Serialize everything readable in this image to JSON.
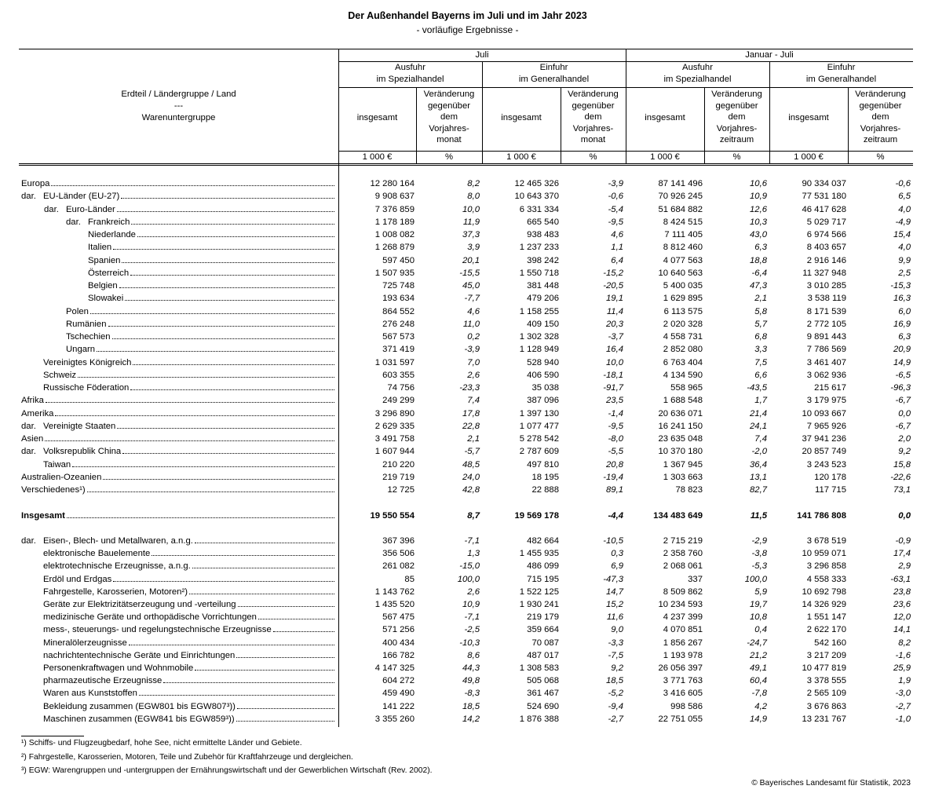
{
  "title": "Der Außenhandel Bayerns im Juli und im Jahr 2023",
  "subtitle": "- vorläufige Ergebnisse -",
  "header": {
    "label_col": [
      "Erdteil / Ländergruppe / Land",
      "---",
      "Warenuntergruppe"
    ],
    "periods": [
      "Juli",
      "Januar - Juli"
    ],
    "groups": [
      [
        "Ausfuhr",
        "im Spezialhandel"
      ],
      [
        "Einfuhr",
        "im Generalhandel"
      ],
      [
        "Ausfuhr",
        "im Spezialhandel"
      ],
      [
        "Einfuhr",
        "im Generalhandel"
      ]
    ],
    "sub": [
      [
        "insgesamt"
      ],
      [
        "Veränderung",
        "gegenüber",
        "dem",
        "Vorjahres-",
        "monat"
      ],
      [
        "insgesamt"
      ],
      [
        "Veränderung",
        "gegenüber",
        "dem",
        "Vorjahres-",
        "monat"
      ],
      [
        "insgesamt"
      ],
      [
        "Veränderung",
        "gegenüber",
        "dem",
        "Vorjahres-",
        "zeitraum"
      ],
      [
        "insgesamt"
      ],
      [
        "Veränderung",
        "gegenüber",
        "dem",
        "Vorjahres-",
        "zeitraum"
      ]
    ],
    "units": [
      "1 000 €",
      "%",
      "1 000 €",
      "%",
      "1 000 €",
      "%",
      "1 000 €",
      "%"
    ]
  },
  "regions": [
    {
      "level": 0,
      "label": "Europa",
      "values": [
        "12 280 164",
        "8,2",
        "12 465 326",
        "-3,9",
        "87 141 496",
        "10,6",
        "90 334 037",
        "-0,6"
      ]
    },
    {
      "level": 1,
      "prefix": "dar.",
      "label": "EU-Länder (EU-27)",
      "values": [
        "9 908 637",
        "8,0",
        "10 643 370",
        "-0,6",
        "70 926 245",
        "10,9",
        "77 531 180",
        "6,5"
      ]
    },
    {
      "level": 2,
      "prefix": "dar.",
      "label": "Euro-Länder",
      "values": [
        "7 376 859",
        "10,0",
        "6 331 334",
        "-5,4",
        "51 684 882",
        "12,6",
        "46 417 628",
        "4,0"
      ]
    },
    {
      "level": 3,
      "prefix": "dar.",
      "label": "Frankreich",
      "values": [
        "1 178 189",
        "11,9",
        "665 540",
        "-9,5",
        "8 424 515",
        "10,3",
        "5 029 717",
        "-4,9"
      ]
    },
    {
      "level": 3,
      "label": "Niederlande",
      "values": [
        "1 008 082",
        "37,3",
        "938 483",
        "4,6",
        "7 111 405",
        "43,0",
        "6 974 566",
        "15,4"
      ]
    },
    {
      "level": 3,
      "label": "Italien",
      "values": [
        "1 268 879",
        "3,9",
        "1 237 233",
        "1,1",
        "8 812 460",
        "6,3",
        "8 403 657",
        "4,0"
      ]
    },
    {
      "level": 3,
      "label": "Spanien",
      "values": [
        "597 450",
        "20,1",
        "398 242",
        "6,4",
        "4 077 563",
        "18,8",
        "2 916 146",
        "9,9"
      ]
    },
    {
      "level": 3,
      "label": "Österreich",
      "values": [
        "1 507 935",
        "-15,5",
        "1 550 718",
        "-15,2",
        "10 640 563",
        "-6,4",
        "11 327 948",
        "2,5"
      ]
    },
    {
      "level": 3,
      "label": "Belgien",
      "values": [
        "725 748",
        "45,0",
        "381 448",
        "-20,5",
        "5 400 035",
        "47,3",
        "3 010 285",
        "-15,3"
      ]
    },
    {
      "level": 3,
      "label": "Slowakei",
      "values": [
        "193 634",
        "-7,7",
        "479 206",
        "19,1",
        "1 629 895",
        "2,1",
        "3 538 119",
        "16,3"
      ]
    },
    {
      "level": 2,
      "label": "Polen",
      "values": [
        "864 552",
        "4,6",
        "1 158 255",
        "11,4",
        "6 113 575",
        "5,8",
        "8 171 539",
        "6,0"
      ]
    },
    {
      "level": 2,
      "label": "Rumänien",
      "values": [
        "276 248",
        "11,0",
        "409 150",
        "20,3",
        "2 020 328",
        "5,7",
        "2 772 105",
        "16,9"
      ]
    },
    {
      "level": 2,
      "label": "Tschechien",
      "values": [
        "567 573",
        "0,2",
        "1 302 328",
        "-3,7",
        "4 558 731",
        "6,8",
        "9 891 443",
        "6,3"
      ]
    },
    {
      "level": 2,
      "label": "Ungarn",
      "values": [
        "371 419",
        "-3,9",
        "1 128 949",
        "16,4",
        "2 852 080",
        "3,3",
        "7 786 569",
        "20,9"
      ]
    },
    {
      "level": 1,
      "label": "Vereinigtes Königreich",
      "values": [
        "1 031 597",
        "7,0",
        "528 940",
        "10,0",
        "6 763 404",
        "7,5",
        "3 461 407",
        "14,9"
      ]
    },
    {
      "level": 1,
      "label": "Schweiz",
      "values": [
        "603 355",
        "2,6",
        "406 590",
        "-18,1",
        "4 134 590",
        "6,6",
        "3 062 936",
        "-6,5"
      ]
    },
    {
      "level": 1,
      "label": "Russische Föderation",
      "values": [
        "74 756",
        "-23,3",
        "35 038",
        "-91,7",
        "558 965",
        "-43,5",
        "215 617",
        "-96,3"
      ]
    },
    {
      "level": 0,
      "label": "Afrika",
      "values": [
        "249 299",
        "7,4",
        "387 096",
        "23,5",
        "1 688 548",
        "1,7",
        "3 179 975",
        "-6,7"
      ]
    },
    {
      "level": 0,
      "label": "Amerika",
      "values": [
        "3 296 890",
        "17,8",
        "1 397 130",
        "-1,4",
        "20 636 071",
        "21,4",
        "10 093 667",
        "0,0"
      ]
    },
    {
      "level": 1,
      "prefix": "dar.",
      "label": "Vereinigte Staaten",
      "values": [
        "2 629 335",
        "22,8",
        "1 077 477",
        "-9,5",
        "16 241 150",
        "24,1",
        "7 965 926",
        "-6,7"
      ]
    },
    {
      "level": 0,
      "label": "Asien",
      "values": [
        "3 491 758",
        "2,1",
        "5 278 542",
        "-8,0",
        "23 635 048",
        "7,4",
        "37 941 236",
        "2,0"
      ]
    },
    {
      "level": 1,
      "prefix": "dar.",
      "label": "Volksrepublik China",
      "values": [
        "1 607 944",
        "-5,7",
        "2 787 609",
        "-5,5",
        "10 370 180",
        "-2,0",
        "20 857 749",
        "9,2"
      ]
    },
    {
      "level": 1,
      "label": "Taiwan",
      "values": [
        "210 220",
        "48,5",
        "497 810",
        "20,8",
        "1 367 945",
        "36,4",
        "3 243 523",
        "15,8"
      ]
    },
    {
      "level": 0,
      "label": "Australien-Ozeanien",
      "values": [
        "219 719",
        "24,0",
        "18 195",
        "-19,4",
        "1 303 663",
        "13,1",
        "120 178",
        "-22,6"
      ]
    },
    {
      "level": 0,
      "label": "Verschiedenes¹)",
      "values": [
        "12 725",
        "42,8",
        "22 888",
        "89,1",
        "78 823",
        "82,7",
        "117 715",
        "73,1"
      ]
    }
  ],
  "total": {
    "level": 0,
    "label": "Insgesamt",
    "values": [
      "19 550 554",
      "8,7",
      "19 569 178",
      "-4,4",
      "134 483 649",
      "11,5",
      "141 786 808",
      "0,0"
    ]
  },
  "goods": [
    {
      "level": 1,
      "prefix": "dar.",
      "label": "Eisen-, Blech- und Metallwaren, a.n.g.",
      "values": [
        "367 396",
        "-7,1",
        "482 664",
        "-10,5",
        "2 715 219",
        "-2,9",
        "3 678 519",
        "-0,9"
      ]
    },
    {
      "level": 1,
      "label": "elektronische Bauelemente",
      "values": [
        "356 506",
        "1,3",
        "1 455 935",
        "0,3",
        "2 358 760",
        "-3,8",
        "10 959 071",
        "17,4"
      ]
    },
    {
      "level": 1,
      "label": "elektrotechnische Erzeugnisse, a.n.g.",
      "values": [
        "261 082",
        "-15,0",
        "486 099",
        "6,9",
        "2 068 061",
        "-5,3",
        "3 296 858",
        "2,9"
      ]
    },
    {
      "level": 1,
      "label": "Erdöl und Erdgas",
      "values": [
        "85",
        "100,0",
        "715 195",
        "-47,3",
        "337",
        "100,0",
        "4 558 333",
        "-63,1"
      ]
    },
    {
      "level": 1,
      "label": "Fahrgestelle, Karosserien, Motoren²)",
      "values": [
        "1 143 762",
        "2,6",
        "1 522 125",
        "14,7",
        "8 509 862",
        "5,9",
        "10 692 798",
        "23,8"
      ]
    },
    {
      "level": 1,
      "label": "Geräte zur Elektrizitätserzeugung und -verteilung",
      "values": [
        "1 435 520",
        "10,9",
        "1 930 241",
        "15,2",
        "10 234 593",
        "19,7",
        "14 326 929",
        "23,6"
      ]
    },
    {
      "level": 1,
      "label": "medizinische Geräte und orthopädische Vorrichtungen",
      "values": [
        "567 475",
        "-7,1",
        "219 179",
        "11,6",
        "4 237 399",
        "10,8",
        "1 551 147",
        "12,0"
      ]
    },
    {
      "level": 1,
      "label": "mess-, steuerungs- und regelungstechnische Erzeugnisse",
      "values": [
        "571 256",
        "-2,5",
        "359 664",
        "9,0",
        "4 070 851",
        "0,4",
        "2 622 170",
        "14,1"
      ]
    },
    {
      "level": 1,
      "label": "Mineralölerzeugnisse",
      "values": [
        "400 434",
        "-10,3",
        "70 087",
        "-3,3",
        "1 856 267",
        "-24,7",
        "542 160",
        "8,2"
      ]
    },
    {
      "level": 1,
      "label": "nachrichtentechnische Geräte und Einrichtungen",
      "values": [
        "166 782",
        "8,6",
        "487 017",
        "-7,5",
        "1 193 978",
        "21,2",
        "3 217 209",
        "-1,6"
      ]
    },
    {
      "level": 1,
      "label": "Personenkraftwagen und Wohnmobile",
      "values": [
        "4 147 325",
        "44,3",
        "1 308 583",
        "9,2",
        "26 056 397",
        "49,1",
        "10 477 819",
        "25,9"
      ]
    },
    {
      "level": 1,
      "label": "pharmazeutische Erzeugnisse",
      "values": [
        "604 272",
        "49,8",
        "505 068",
        "18,5",
        "3 771 763",
        "60,4",
        "3 378 555",
        "1,9"
      ]
    },
    {
      "level": 1,
      "label": "Waren aus Kunststoffen",
      "values": [
        "459 490",
        "-8,3",
        "361 467",
        "-5,2",
        "3 416 605",
        "-7,8",
        "2 565 109",
        "-3,0"
      ]
    },
    {
      "level": 1,
      "label": "Bekleidung zusammen (EGW801 bis EGW807³))",
      "values": [
        "141 222",
        "18,5",
        "524 690",
        "-9,4",
        "998 586",
        "4,2",
        "3 676 863",
        "-2,7"
      ]
    },
    {
      "level": 1,
      "label": "Maschinen zusammen (EGW841 bis EGW859³))",
      "values": [
        "3 355 260",
        "14,2",
        "1 876 388",
        "-2,7",
        "22 751 055",
        "14,9",
        "13 231 767",
        "-1,0"
      ]
    }
  ],
  "footnotes": [
    "¹) Schiffs- und Flugzeugbedarf, hohe See, nicht ermittelte Länder und Gebiete.",
    "²) Fahrgestelle, Karosserien, Motoren, Teile und Zubehör für Kraftfahrzeuge und dergleichen.",
    "³) EGW: Warengruppen und -untergruppen der Ernährungswirtschaft und der Gewerblichen Wirtschaft (Rev. 2002)."
  ],
  "copyright": "© Bayerisches Landesamt für Statistik, 2023"
}
